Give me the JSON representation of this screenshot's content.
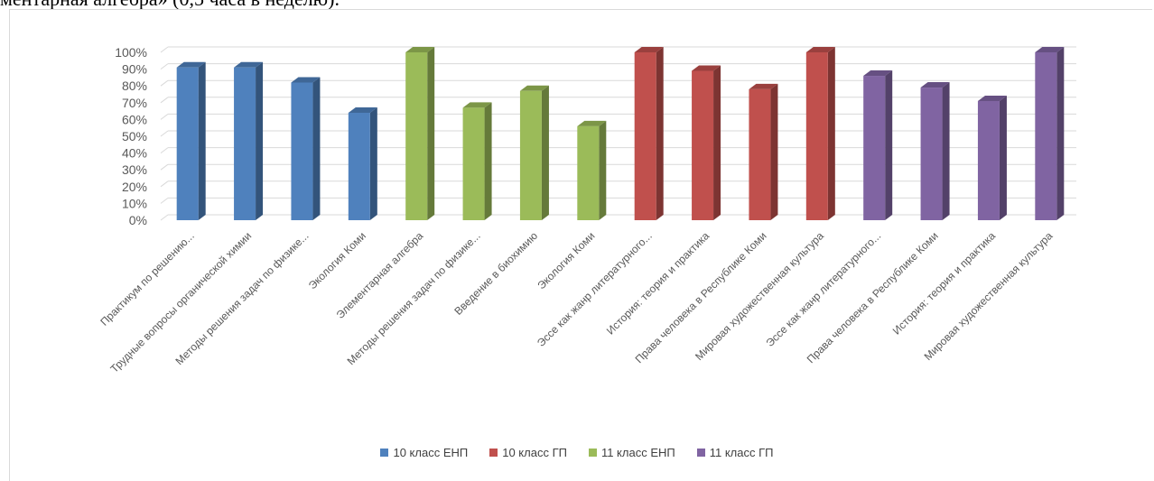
{
  "document": {
    "top_text": "ментарная алгебра» (0,5 часа в неделю)."
  },
  "chart_data": {
    "type": "bar",
    "ylim": [
      0,
      100
    ],
    "y_ticks": [
      "0%",
      "10%",
      "20%",
      "30%",
      "40%",
      "50%",
      "60%",
      "70%",
      "80%",
      "90%",
      "100%"
    ],
    "grid": true,
    "legend_position": "bottom",
    "categories": [
      "Практикум  по решению...",
      "Трудные вопросы органической химии",
      "Методы решения задач по физике...",
      "Экология Коми",
      "Элементарная алгебра",
      "Методы решения задач по физике...",
      "Введение в биохимию",
      "Экология Коми",
      "Эссе как жанр литературного...",
      "История: теория и практика",
      "Права человека в Республике Коми",
      "Мировая художественная культура",
      "Эссе как жанр литературного...",
      "Права человека в Республике Коми",
      "История: теория и практика",
      "Мировая художественная культура"
    ],
    "values": [
      91,
      91,
      82,
      64,
      100,
      67,
      77,
      56,
      100,
      89,
      78,
      100,
      86,
      79,
      71,
      100
    ],
    "bar_series": [
      0,
      0,
      0,
      0,
      2,
      2,
      2,
      2,
      1,
      1,
      1,
      1,
      3,
      3,
      3,
      3
    ],
    "series": [
      {
        "name": "10 класс ЕНП",
        "color": "#4f81bd"
      },
      {
        "name": "10 класс ГП",
        "color": "#c0504d"
      },
      {
        "name": "11 класс ЕНП",
        "color": "#9bbb59"
      },
      {
        "name": "11 класс ГП",
        "color": "#8064a2"
      }
    ]
  }
}
